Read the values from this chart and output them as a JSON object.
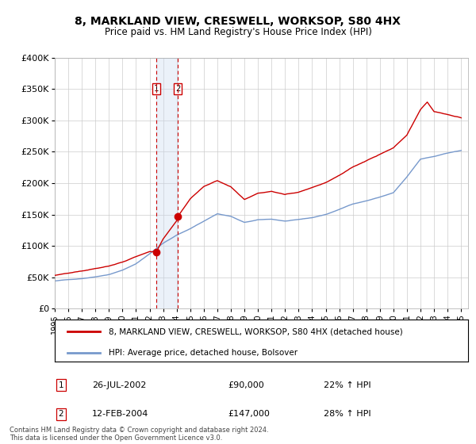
{
  "title": "8, MARKLAND VIEW, CRESWELL, WORKSOP, S80 4HX",
  "subtitle": "Price paid vs. HM Land Registry's House Price Index (HPI)",
  "legend_line1": "8, MARKLAND VIEW, CRESWELL, WORKSOP, S80 4HX (detached house)",
  "legend_line2": "HPI: Average price, detached house, Bolsover",
  "transaction1_date": "26-JUL-2002",
  "transaction1_price": "£90,000",
  "transaction1_hpi": "22% ↑ HPI",
  "transaction2_date": "12-FEB-2004",
  "transaction2_price": "£147,000",
  "transaction2_hpi": "28% ↑ HPI",
  "footer": "Contains HM Land Registry data © Crown copyright and database right 2024.\nThis data is licensed under the Open Government Licence v3.0.",
  "hpi_color": "#7799cc",
  "price_color": "#cc0000",
  "vline_color": "#cc0000",
  "vshade_color": "#c8d8ee",
  "ylim": [
    0,
    400000
  ],
  "yticks": [
    0,
    50000,
    100000,
    150000,
    200000,
    250000,
    300000,
    350000,
    400000
  ],
  "background_color": "#ffffff",
  "grid_color": "#cccccc",
  "t1": 2002.5,
  "t2": 2004.083,
  "p1": 90000,
  "p2": 147000,
  "start_year": 1995,
  "end_year": 2025
}
